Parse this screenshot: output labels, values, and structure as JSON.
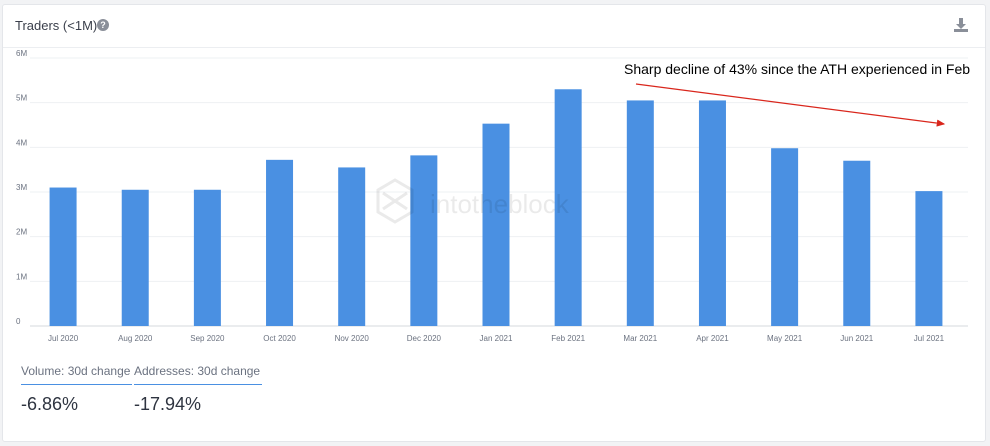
{
  "header": {
    "title": "Traders (<1M)",
    "help_icon": "question-circle-icon",
    "download_icon": "download-icon"
  },
  "annotation": "Sharp decline of 43% since the ATH experienced in Feb",
  "metrics": [
    {
      "label": "Volume: 30d change",
      "value": "-6.86%"
    },
    {
      "label": "Addresses: 30d change",
      "value": "-17.94%"
    }
  ],
  "colors": {
    "bar": "#4a90e2",
    "arrow": "#d9261c",
    "axis_text": "#6b7280"
  },
  "chart_data": {
    "type": "bar",
    "title": "Traders (<1M)",
    "categories": [
      "Jul 2020",
      "Aug 2020",
      "Sep 2020",
      "Oct 2020",
      "Nov 2020",
      "Dec 2020",
      "Jan 2021",
      "Feb 2021",
      "Mar 2021",
      "Apr 2021",
      "May 2021",
      "Jun 2021",
      "Jul 2021"
    ],
    "values": [
      3.1,
      3.05,
      3.05,
      3.72,
      3.55,
      3.82,
      4.53,
      5.3,
      5.05,
      5.05,
      3.98,
      3.7,
      3.02
    ],
    "yunit": "M",
    "ylim": [
      0,
      6
    ],
    "yticks": [
      0,
      1,
      2,
      3,
      4,
      5,
      6
    ],
    "ytick_labels": [
      "0",
      "1M",
      "2M",
      "3M",
      "4M",
      "5M",
      "6M"
    ],
    "xlabel": "",
    "ylabel": "",
    "grid": true
  }
}
